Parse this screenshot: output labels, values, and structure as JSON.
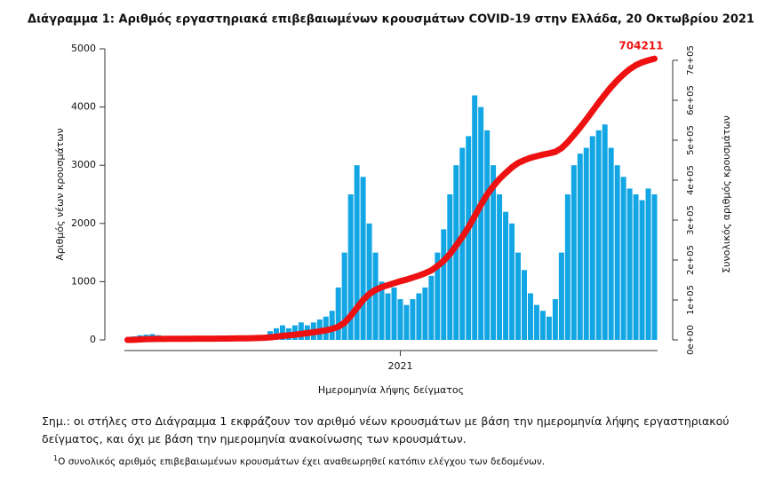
{
  "chart_data": {
    "type": "combo",
    "title": "Διάγραμμα 1: Αριθμός εργαστηριακά επιβεβαιωμένων κρουσμάτων COVID-19 στην Ελλάδα, 20 Οκτωβρίου 2021",
    "x_label": "Ημερομηνία λήψης δείγματος",
    "y_label": "Αριθμός νέων κρουσμάτων",
    "y2_label": "Συνολικός αριθμός κρουσμάτων",
    "categories": [
      null,
      null,
      null,
      null,
      null,
      null,
      null,
      null,
      null,
      null,
      null,
      null,
      null,
      null,
      null,
      null,
      null,
      null,
      null,
      null,
      null,
      null,
      null,
      null,
      null,
      null,
      null,
      null,
      null,
      null,
      null,
      null,
      null,
      null,
      null,
      null,
      null,
      null,
      null,
      null,
      null,
      null,
      null,
      null,
      "2021",
      null,
      null,
      null,
      null,
      null,
      null,
      null,
      null,
      null,
      null,
      null,
      null,
      null,
      null,
      null,
      null,
      null,
      null,
      null,
      null,
      null,
      null,
      null,
      null,
      null,
      null,
      null,
      null,
      null,
      null,
      null,
      null,
      null,
      null,
      null,
      null,
      null,
      null,
      null,
      null,
      null
    ],
    "series": [
      {
        "type": "bar",
        "color": "#12a6e4",
        "values": [
          20,
          60,
          80,
          90,
          100,
          80,
          60,
          40,
          30,
          20,
          15,
          10,
          10,
          15,
          15,
          20,
          25,
          30,
          30,
          35,
          40,
          60,
          80,
          150,
          200,
          250,
          200,
          250,
          300,
          250,
          300,
          350,
          400,
          500,
          900,
          1500,
          2500,
          3000,
          2800,
          2000,
          1500,
          1000,
          800,
          900,
          700,
          600,
          700,
          800,
          900,
          1100,
          1500,
          1900,
          2500,
          3000,
          3300,
          3500,
          4200,
          4000,
          3600,
          3000,
          2500,
          2200,
          2000,
          1500,
          1200,
          800,
          600,
          500,
          400,
          700,
          1500,
          2500,
          3000,
          3200,
          3300,
          3500,
          3600,
          3700,
          3300,
          3000,
          2800,
          2600,
          2500,
          2400,
          2600,
          2500
        ]
      },
      {
        "type": "line",
        "axis": "y2",
        "color": "#ee1111",
        "values": [
          0,
          300,
          1000,
          1800,
          2300,
          2500,
          2600,
          2700,
          2800,
          2850,
          2900,
          2950,
          3000,
          3100,
          3150,
          3300,
          3400,
          3600,
          3800,
          4000,
          4300,
          4700,
          5300,
          6500,
          8000,
          10000,
          11500,
          13000,
          15000,
          17000,
          19000,
          21500,
          24000,
          27500,
          33000,
          43000,
          60000,
          80000,
          100000,
          115000,
          125000,
          132000,
          137000,
          142000,
          147000,
          151000,
          156000,
          161000,
          167000,
          174000,
          185000,
          198000,
          215000,
          236000,
          258000,
          282000,
          310000,
          338000,
          364000,
          385000,
          403000,
          418000,
          432000,
          443000,
          450000,
          456000,
          460000,
          464000,
          467000,
          471000,
          480000,
          495000,
          513000,
          532000,
          552000,
          573000,
          594000,
          614000,
          633000,
          650000,
          665000,
          678000,
          688000,
          695000,
          700000,
          704211
        ]
      }
    ],
    "annotations": [
      "704211"
    ],
    "ylim": [
      0,
      5000
    ],
    "yticks": [
      0,
      1000,
      2000,
      3000,
      4000,
      5000
    ],
    "y2lim": [
      0,
      700000
    ],
    "y2ticks": [
      {
        "value": 0,
        "label": "0e+00"
      },
      {
        "value": 100000,
        "label": "1e+05"
      },
      {
        "value": 200000,
        "label": "2e+05"
      },
      {
        "value": 300000,
        "label": "3e+05"
      },
      {
        "value": 400000,
        "label": "4e+05"
      },
      {
        "value": 500000,
        "label": "5e+05"
      },
      {
        "value": 600000,
        "label": "6e+05"
      },
      {
        "value": 700000,
        "label": "7e+05"
      }
    ]
  },
  "note": "Σημ.: οι στήλες στο Διάγραμμα 1 εκφράζουν τον αριθμό νέων κρουσμάτων με βάση την ημερομηνία λήψης εργαστηριακού δείγματος, και όχι με βάση την ημερομηνία ανακοίνωσης των κρουσμάτων.",
  "footnote": {
    "marker": "1",
    "text": "Ο συνολικός αριθμός επιβεβαιωμένων κρουσμάτων έχει αναθεωρηθεί κατόπιν ελέγχου των δεδομένων."
  }
}
